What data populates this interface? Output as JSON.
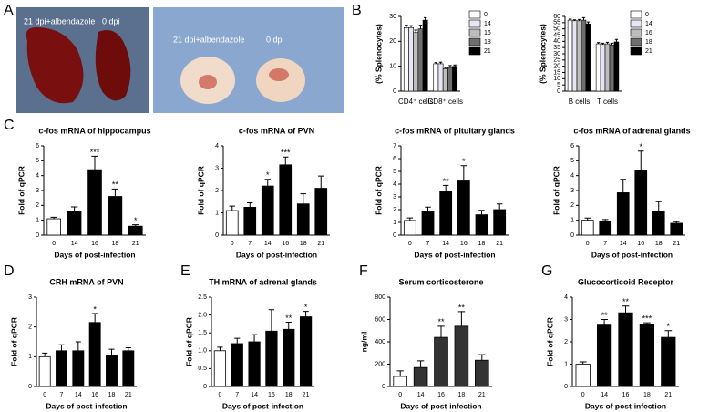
{
  "panel_a": {
    "label": "A",
    "captions": [
      "21 dpi+albendazole",
      "0 dpi",
      "21 dpi+albendazole",
      "0 dpi"
    ]
  },
  "chart_data": [
    {
      "type": "grouped_bar",
      "panel": "B",
      "y_label": "(% Splenocytes)",
      "categories": [
        "CD4⁺ cells",
        "CD8⁺ cells"
      ],
      "series": [
        {
          "name": "0",
          "color": "#ffffff",
          "values": [
            25.5,
            11
          ],
          "errors": [
            1,
            0.5
          ]
        },
        {
          "name": "14",
          "color": "#e6e6f5",
          "values": [
            25.5,
            11
          ],
          "errors": [
            0.8,
            0.6
          ]
        },
        {
          "name": "16",
          "color": "#bdbdbd",
          "values": [
            23.5,
            9
          ],
          "errors": [
            1,
            0.5
          ]
        },
        {
          "name": "18",
          "color": "#6e6e6e",
          "values": [
            25,
            9.5
          ],
          "errors": [
            1.5,
            0.8
          ]
        },
        {
          "name": "21",
          "color": "#000000",
          "values": [
            28.5,
            10
          ],
          "errors": [
            1,
            0.5
          ]
        }
      ],
      "ylim": [
        0,
        30
      ],
      "yticks": [
        0,
        10,
        20,
        30
      ]
    },
    {
      "type": "grouped_bar",
      "y_label": "(% Splenocytes)",
      "categories": [
        "B cells",
        "T cells"
      ],
      "series": [
        {
          "name": "0",
          "color": "#ffffff",
          "values": [
            57,
            38
          ],
          "errors": [
            0.8,
            1
          ]
        },
        {
          "name": "14",
          "color": "#e6e6f5",
          "values": [
            56.5,
            37.5
          ],
          "errors": [
            0.8,
            1
          ]
        },
        {
          "name": "16",
          "color": "#bdbdbd",
          "values": [
            56.5,
            38
          ],
          "errors": [
            1,
            1.2
          ]
        },
        {
          "name": "18",
          "color": "#6e6e6e",
          "values": [
            57,
            37
          ],
          "errors": [
            2,
            1.5
          ]
        },
        {
          "name": "21",
          "color": "#000000",
          "values": [
            54,
            39.5
          ],
          "errors": [
            1.5,
            2
          ]
        }
      ],
      "ylim": [
        0,
        60
      ],
      "yticks": [
        0,
        5,
        10,
        15,
        20,
        25,
        30,
        35,
        40,
        45,
        50,
        55,
        60
      ]
    },
    {
      "type": "bar",
      "panel": "C",
      "title": "c-fos mRNA of hippocampus",
      "y_label": "Fold of qPCR",
      "x_label": "Days of post-infection",
      "categories": [
        "0",
        "14",
        "16",
        "18",
        "21"
      ],
      "values": [
        1.1,
        1.6,
        4.4,
        2.6,
        0.6
      ],
      "errors": [
        0.1,
        0.3,
        0.9,
        0.5,
        0.1
      ],
      "annotations": [
        null,
        null,
        "***",
        "**",
        "*"
      ],
      "colors": [
        "#ffffff",
        "#000000",
        "#000000",
        "#000000",
        "#000000"
      ],
      "ylim": [
        0,
        6
      ],
      "yticks": [
        0,
        1,
        2,
        3,
        4,
        5,
        6
      ]
    },
    {
      "type": "bar",
      "title": "c-fos mRNA of PVN",
      "y_label": "Fold of qPCR",
      "x_label": "Days of post-infection",
      "categories": [
        "0",
        "7",
        "14",
        "16",
        "18",
        "21"
      ],
      "values": [
        1.1,
        1.25,
        2.2,
        3.15,
        1.4,
        2.1
      ],
      "errors": [
        0.2,
        0.2,
        0.3,
        0.35,
        0.45,
        0.55
      ],
      "annotations": [
        null,
        null,
        "*",
        "***",
        null,
        null
      ],
      "colors": [
        "#ffffff",
        "#000000",
        "#000000",
        "#000000",
        "#000000",
        "#000000"
      ],
      "ylim": [
        0,
        4
      ],
      "yticks": [
        0,
        1,
        2,
        3,
        4
      ]
    },
    {
      "type": "bar",
      "title": "c-fos mRNA of pituitary glands",
      "y_label": "Fold of qPCR",
      "x_label": "Days of post-infection",
      "categories": [
        "0",
        "7",
        "14",
        "16",
        "18",
        "21"
      ],
      "values": [
        1.15,
        1.85,
        3.4,
        4.25,
        1.6,
        2.0
      ],
      "errors": [
        0.2,
        0.35,
        0.5,
        1.2,
        0.35,
        0.45
      ],
      "annotations": [
        null,
        null,
        "**",
        "*",
        null,
        null
      ],
      "colors": [
        "#ffffff",
        "#000000",
        "#000000",
        "#000000",
        "#000000",
        "#000000"
      ],
      "ylim": [
        0,
        7
      ],
      "yticks": [
        0,
        1,
        2,
        3,
        4,
        5,
        6,
        7
      ]
    },
    {
      "type": "bar",
      "title": "c-fos mRNA of adrenal glands",
      "y_label": "Fold of qPCR",
      "x_label": "Days of post-infection",
      "categories": [
        "0",
        "7",
        "14",
        "16",
        "18",
        "21"
      ],
      "values": [
        1.0,
        0.95,
        2.85,
        4.35,
        1.6,
        0.8
      ],
      "errors": [
        0.15,
        0.1,
        0.9,
        1.3,
        0.65,
        0.1
      ],
      "annotations": [
        null,
        null,
        null,
        "*",
        null,
        null
      ],
      "colors": [
        "#ffffff",
        "#000000",
        "#000000",
        "#000000",
        "#000000",
        "#000000"
      ],
      "ylim": [
        0,
        6
      ],
      "yticks": [
        0,
        1,
        2,
        3,
        4,
        5,
        6
      ]
    },
    {
      "type": "bar",
      "panel": "D",
      "title": "CRH mRNA of PVN",
      "y_label": "Fold of qPCR",
      "x_label": "Days of post-infection",
      "categories": [
        "0",
        "7",
        "14",
        "16",
        "18",
        "21"
      ],
      "values": [
        1.0,
        1.2,
        1.2,
        2.15,
        1.05,
        1.2
      ],
      "errors": [
        0.12,
        0.2,
        0.3,
        0.3,
        0.2,
        0.1
      ],
      "annotations": [
        null,
        null,
        null,
        "*",
        null,
        null
      ],
      "colors": [
        "#ffffff",
        "#000000",
        "#000000",
        "#000000",
        "#000000",
        "#000000"
      ],
      "ylim": [
        0,
        3
      ],
      "yticks": [
        0,
        1,
        2,
        3
      ]
    },
    {
      "type": "bar",
      "panel": "E",
      "title": "TH mRNA of adrenal glands",
      "y_label": "Fold of qPCR",
      "x_label": "Days of post-infection",
      "categories": [
        "0",
        "7",
        "14",
        "16",
        "18",
        "21"
      ],
      "values": [
        1.0,
        1.2,
        1.25,
        1.55,
        1.6,
        1.95
      ],
      "errors": [
        0.1,
        0.15,
        0.2,
        0.6,
        0.2,
        0.15
      ],
      "annotations": [
        null,
        null,
        null,
        null,
        "**",
        "*"
      ],
      "colors": [
        "#ffffff",
        "#000000",
        "#000000",
        "#000000",
        "#000000",
        "#000000"
      ],
      "ylim": [
        0,
        2.5
      ],
      "yticks": [
        0,
        0.5,
        {
          "value": 1,
          "label": "1.0"
        },
        1.5,
        {
          "value": 2,
          "label": "2.0"
        },
        2.5
      ]
    },
    {
      "type": "bar",
      "panel": "F",
      "title": "Serum corticosterone",
      "y_label": "ng/ml",
      "x_label": "Days of post-infection",
      "categories": [
        "0",
        "14",
        "16",
        "18",
        "21"
      ],
      "values": [
        90,
        170,
        440,
        540,
        235
      ],
      "errors": [
        50,
        60,
        100,
        130,
        50
      ],
      "annotations": [
        null,
        null,
        "**",
        "**",
        null
      ],
      "colors": [
        "#ffffff",
        "#333333",
        "#333333",
        "#333333",
        "#333333"
      ],
      "ylim": [
        0,
        800
      ],
      "yticks": [
        0,
        200,
        400,
        600,
        800
      ]
    },
    {
      "type": "bar",
      "panel": "G",
      "title": "Glucocorticoid Receptor",
      "y_label": "Fold of qPCR",
      "x_label": "Days of post-infection",
      "categories": [
        "0",
        "14",
        "16",
        "18",
        "21"
      ],
      "values": [
        1.0,
        2.75,
        3.3,
        2.8,
        2.2
      ],
      "errors": [
        0.1,
        0.25,
        0.3,
        0.05,
        0.3
      ],
      "annotations": [
        null,
        "**",
        "**",
        "***",
        "*"
      ],
      "colors": [
        "#ffffff",
        "#000000",
        "#000000",
        "#000000",
        "#000000"
      ],
      "ylim": [
        0,
        4
      ],
      "yticks": [
        0,
        1,
        2,
        3,
        4
      ]
    }
  ]
}
